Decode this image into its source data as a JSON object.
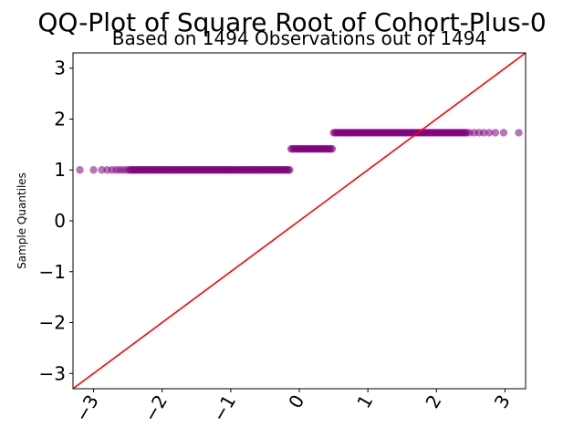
{
  "chart_data": {
    "type": "scatter",
    "title": "QQ-Plot of Square Root of Cohort-Plus-0",
    "subtitle": "Based on 1494 Observations out of 1494",
    "xlabel": "",
    "ylabel": "Sample Quantiles",
    "xlim": [
      -3.3,
      3.3
    ],
    "ylim": [
      -3.3,
      3.3
    ],
    "xticks": [
      -3,
      -2,
      -1,
      0,
      1,
      2,
      3
    ],
    "yticks": [
      -3,
      -2,
      -1,
      0,
      1,
      2,
      3
    ],
    "xtick_labels": [
      "−3",
      "−2",
      "−1",
      "0",
      "1",
      "2",
      "3"
    ],
    "ytick_labels": [
      "−3",
      "−2",
      "−1",
      "0",
      "1",
      "2",
      "3"
    ],
    "grid": false,
    "series": [
      {
        "marker_color": "#800080",
        "marker_alpha": 0.55,
        "groups": [
          {
            "y": 1.0,
            "x_start": -3.2,
            "x_end": -0.14,
            "sparse_x": [
              -3.2,
              -3.0,
              -2.88,
              -2.8,
              -2.73,
              -2.67,
              -2.62,
              -2.57,
              -2.52
            ]
          },
          {
            "y": 1.414,
            "x_start": -0.12,
            "x_end": 0.48,
            "sparse_x": []
          },
          {
            "y": 1.732,
            "x_start": 0.5,
            "x_end": 3.2,
            "sparse_x": [
              2.48,
              2.55,
              2.62,
              2.69,
              2.77,
              2.86,
              2.98,
              3.2
            ]
          }
        ]
      }
    ],
    "reference_line": {
      "slope": 1,
      "intercept": 0,
      "color": "#ff0000"
    }
  }
}
